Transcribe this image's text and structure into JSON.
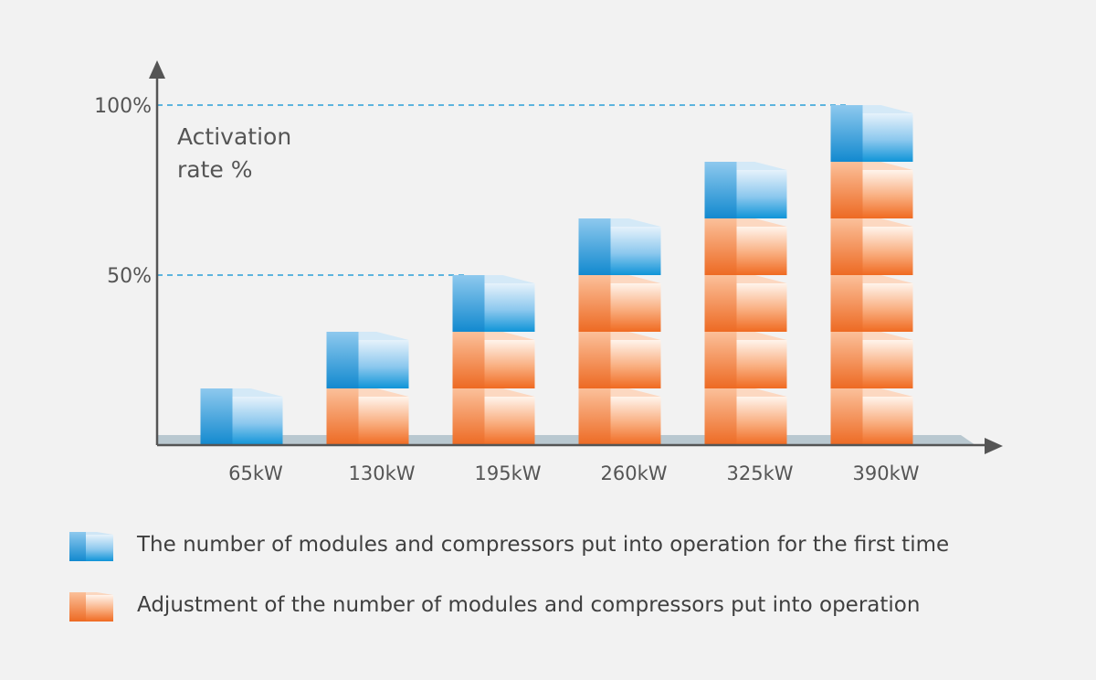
{
  "chart_data": {
    "type": "bar",
    "categories": [
      "65kW",
      "130kW",
      "195kW",
      "260kW",
      "325kW",
      "390kW"
    ],
    "series": [
      {
        "name": "The number of modules and compressors put into operation for the first time",
        "values": [
          1,
          1,
          1,
          1,
          1,
          1
        ]
      },
      {
        "name": "Adjustment of the number of modules and compressors put into operation",
        "values": [
          0,
          1,
          2,
          3,
          4,
          5
        ]
      }
    ],
    "ylabel": "Activation rate %",
    "ytick_labels": [
      "50%",
      "100%"
    ],
    "ytick_values": [
      3,
      6
    ],
    "ylim": [
      0,
      6
    ],
    "grid": false,
    "legend_position": "bottom-left",
    "colors": {
      "blue": "#1a9ad8",
      "orange": "#f26b21",
      "axis": "#555555",
      "dashed": "#2aa0d8",
      "floor": "#b9c8d0"
    }
  }
}
